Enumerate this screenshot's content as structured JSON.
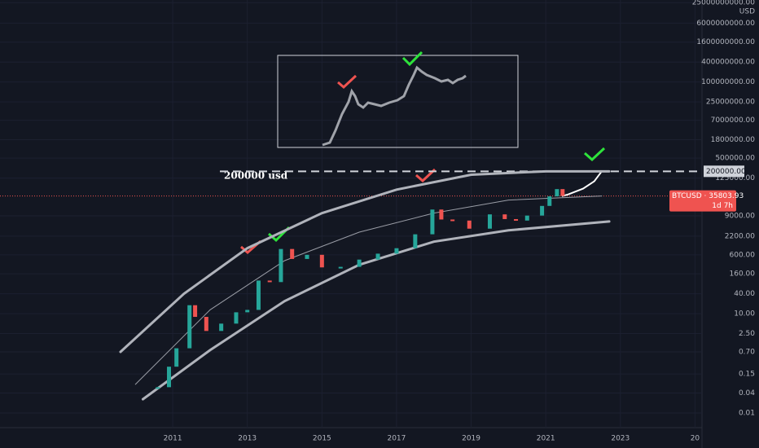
{
  "chart_data": {
    "type": "candlestick",
    "currency_label": "USD",
    "annotation": "200000 usd",
    "reference_line": {
      "value": 200000,
      "label": "200000.00"
    },
    "price_label": {
      "value": 35803.93,
      "label": "BTCUSD · 35803.93",
      "timer": "1d 7h"
    },
    "log_scale": true,
    "grid": true,
    "xlim": [
      2006.37,
      2025.1
    ],
    "ylim": [
      0.0036,
      30000000000
    ],
    "xticks": [
      2011,
      2013,
      2015,
      2017,
      2019,
      2021,
      2023,
      {
        "value": 2025,
        "label": "20"
      }
    ],
    "yticks": [
      {
        "value": 0.01,
        "label": "0.01"
      },
      {
        "value": 0.04,
        "label": "0.04"
      },
      {
        "value": 0.15,
        "label": "0.15"
      },
      {
        "value": 0.7,
        "label": "0.70"
      },
      {
        "value": 2.5,
        "label": "2.50"
      },
      {
        "value": 10,
        "label": "10.00"
      },
      {
        "value": 40,
        "label": "40.00"
      },
      {
        "value": 160,
        "label": "160.00"
      },
      {
        "value": 600,
        "label": "600.00"
      },
      {
        "value": 2200,
        "label": "2200.00"
      },
      {
        "value": 9000,
        "label": "9000.00"
      },
      {
        "value": 125000,
        "label": "125000.00"
      },
      {
        "value": 500000,
        "label": "500000.00"
      },
      {
        "value": 1800000,
        "label": "1800000.00"
      },
      {
        "value": 7000000,
        "label": "7000000.00"
      },
      {
        "value": 25000000,
        "label": "25000000.00"
      },
      {
        "value": 100000000,
        "label": "100000000.00"
      },
      {
        "value": 400000000,
        "label": "400000000.00"
      },
      {
        "value": 1600000000,
        "label": "1600000000.00"
      },
      {
        "value": 6000000000,
        "label": "6000000000.00"
      },
      {
        "value": 25000000000,
        "label": "25000000000.00"
      }
    ],
    "up_color": "#26a69a",
    "down_color": "#ef5350",
    "price": {
      "x": [
        2010.6,
        2010.9,
        2011.1,
        2011.45,
        2011.6,
        2011.9,
        2012.3,
        2012.7,
        2013.0,
        2013.3,
        2013.6,
        2013.9,
        2014.2,
        2014.6,
        2015.0,
        2015.5,
        2016.0,
        2016.5,
        2017.0,
        2017.5,
        2017.96,
        2018.2,
        2018.5,
        2018.95,
        2019.5,
        2019.9,
        2020.2,
        2020.5,
        2020.9,
        2021.1,
        2021.3,
        2021.45
      ],
      "values": [
        0.06,
        0.25,
        0.9,
        18,
        8,
        3,
        5,
        11,
        13,
        100,
        90,
        900,
        450,
        600,
        250,
        260,
        430,
        650,
        950,
        2500,
        14000,
        7000,
        6500,
        3700,
        10000,
        7200,
        6500,
        9200,
        18000,
        35000,
        58000,
        36000
      ]
    },
    "series": [
      {
        "color": "#ffffff",
        "width": 2,
        "x": [
          2021.45,
          2021.6,
          2022.0,
          2022.3,
          2022.5
        ],
        "values": [
          36000,
          40000,
          60000,
          100000,
          200000
        ]
      },
      {
        "color": "#b0b3bb",
        "width": 3,
        "x": [
          2009.6,
          2011.3,
          2013.0,
          2015.0,
          2017.0,
          2019.0,
          2021.0,
          2022.7
        ],
        "values": [
          0.7,
          40,
          950,
          10900,
          56000,
          158000,
          200000,
          200000
        ]
      },
      {
        "color": "#9a9da6",
        "width": 1,
        "x": [
          2010.0,
          2012.0,
          2014.0,
          2016.0,
          2018.0,
          2020.0,
          2022.5
        ],
        "values": [
          0.073,
          13,
          400,
          2900,
          10900,
          27000,
          36000
        ]
      },
      {
        "color": "#b0b3bb",
        "width": 3,
        "x": [
          2010.2,
          2012.0,
          2014.0,
          2016.0,
          2018.0,
          2020.0,
          2022.7
        ],
        "values": [
          0.026,
          0.79,
          24,
          300,
          1500,
          3300,
          6100
        ]
      }
    ]
  }
}
